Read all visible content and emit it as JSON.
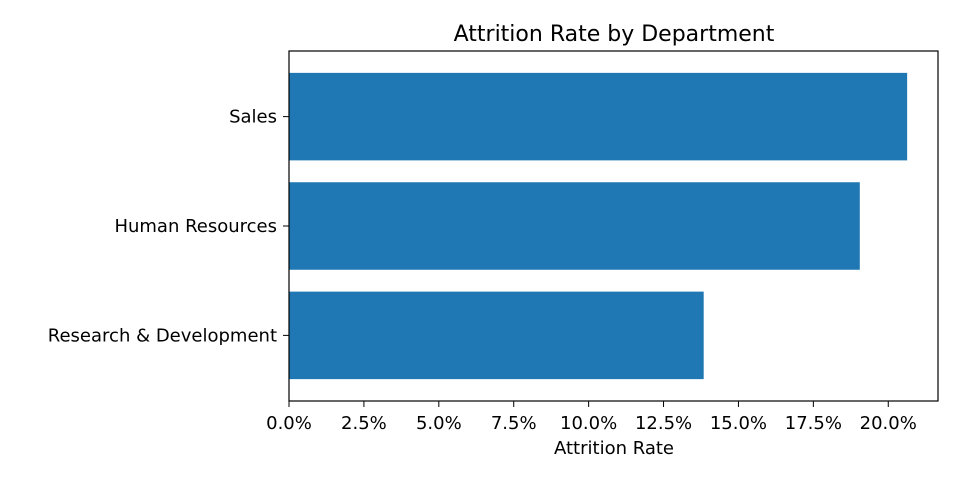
{
  "chart_data": {
    "type": "bar",
    "orientation": "horizontal",
    "title": "Attrition Rate by Department",
    "xlabel": "Attrition Rate",
    "ylabel": "",
    "categories": [
      "Sales",
      "Human Resources",
      "Research & Development"
    ],
    "values": [
      0.2063,
      0.1905,
      0.1384
    ],
    "xlim": [
      0,
      0.2166
    ],
    "x_ticks": [
      0,
      0.025,
      0.05,
      0.075,
      0.1,
      0.125,
      0.15,
      0.175,
      0.2
    ],
    "x_tick_labels": [
      "0.0%",
      "2.5%",
      "5.0%",
      "7.5%",
      "10.0%",
      "12.5%",
      "15.0%",
      "17.5%",
      "20.0%"
    ],
    "bar_color": "#1f77b4",
    "grid": false
  }
}
